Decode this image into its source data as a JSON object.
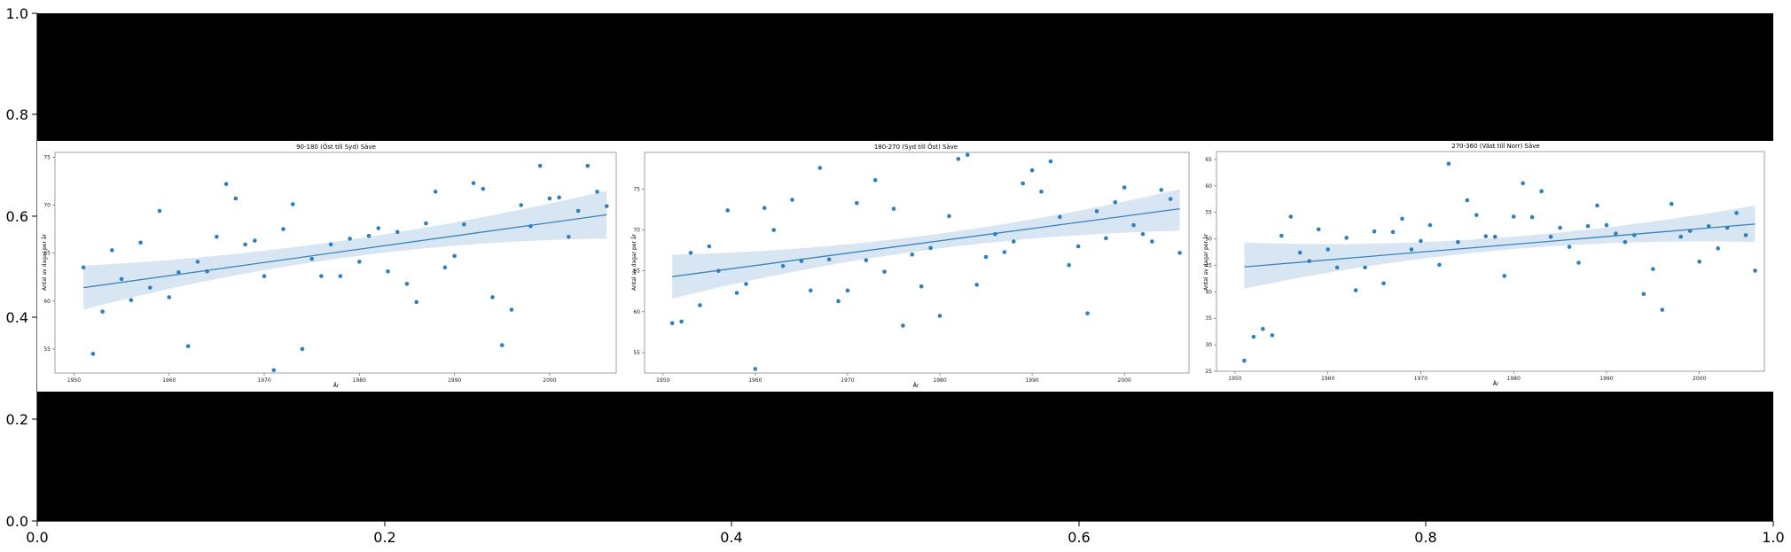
{
  "outer_axes": {
    "x_ticks": [
      "0.0",
      "0.2",
      "0.4",
      "0.6",
      "0.8",
      "1.0"
    ],
    "y_ticks": [
      "0.0",
      "0.2",
      "0.4",
      "0.6",
      "0.8",
      "1.0"
    ]
  },
  "colors": {
    "background": "#000000",
    "points": "#2f7fc0",
    "trend_line": "#3a82ba",
    "confidence_band": "#a9c8e6"
  },
  "chart_data": [
    {
      "type": "scatter",
      "title": "90-180 (Öst till Syd) Säve",
      "xlabel": "År",
      "ylabel": "Antal av dagar per år",
      "xlim": [
        1948,
        2007
      ],
      "ylim": [
        52.5,
        75.5
      ],
      "x_ticks": [
        1950,
        1960,
        1970,
        1980,
        1990,
        2000
      ],
      "y_ticks": [
        55,
        60,
        65,
        70,
        75
      ],
      "x": [
        1951,
        1952,
        1953,
        1954,
        1955,
        1956,
        1957,
        1958,
        1959,
        1960,
        1961,
        1962,
        1963,
        1964,
        1965,
        1966,
        1967,
        1968,
        1969,
        1970,
        1971,
        1972,
        1973,
        1974,
        1975,
        1976,
        1977,
        1978,
        1979,
        1980,
        1981,
        1982,
        1983,
        1984,
        1985,
        1986,
        1987,
        1988,
        1989,
        1990,
        1991,
        1992,
        1993,
        1994,
        1995,
        1996,
        1997,
        1998,
        1999,
        2000,
        2001,
        2002,
        2003,
        2004,
        2005,
        2006
      ],
      "y": [
        63.5,
        54.5,
        58.9,
        65.3,
        62.3,
        60.1,
        66.1,
        61.4,
        69.4,
        60.4,
        63.0,
        55.3,
        64.1,
        63.1,
        66.7,
        72.2,
        70.7,
        65.9,
        66.3,
        62.6,
        52.8,
        67.5,
        70.1,
        55.0,
        64.4,
        62.6,
        65.9,
        62.6,
        66.5,
        64.1,
        66.8,
        67.6,
        63.1,
        67.2,
        61.8,
        59.9,
        68.1,
        71.4,
        63.5,
        64.7,
        68.0,
        72.3,
        71.7,
        60.4,
        55.4,
        59.1,
        70.0,
        67.8,
        74.1,
        70.7,
        70.8,
        66.7,
        69.4,
        74.1,
        71.4,
        69.9
      ],
      "fit": {
        "x0": 1951,
        "y0": 61.4,
        "x1": 2006,
        "y1": 69.0
      },
      "band": {
        "x": [
          1951,
          1978,
          2006
        ],
        "lower": [
          59.1,
          64.5,
          66.5
        ],
        "upper": [
          63.7,
          66.3,
          71.5
        ]
      }
    },
    {
      "type": "scatter",
      "title": "180-270 (Syd till Öst) Säve",
      "xlabel": "År",
      "ylabel": "Antal av dagar per år",
      "xlim": [
        1948,
        2007
      ],
      "ylim": [
        52.5,
        79.5
      ],
      "x_ticks": [
        1950,
        1960,
        1970,
        1980,
        1990,
        2000
      ],
      "y_ticks": [
        55,
        60,
        65,
        70,
        75
      ],
      "x": [
        1951,
        1952,
        1953,
        1954,
        1955,
        1956,
        1957,
        1958,
        1959,
        1960,
        1961,
        1962,
        1963,
        1964,
        1965,
        1966,
        1967,
        1968,
        1969,
        1970,
        1971,
        1972,
        1973,
        1974,
        1975,
        1976,
        1977,
        1978,
        1979,
        1980,
        1981,
        1982,
        1983,
        1984,
        1985,
        1986,
        1987,
        1988,
        1989,
        1990,
        1991,
        1992,
        1993,
        1994,
        1995,
        1996,
        1997,
        1998,
        1999,
        2000,
        2001,
        2002,
        2003,
        2004,
        2005,
        2006
      ],
      "y": [
        58.6,
        58.8,
        67.2,
        60.8,
        68.0,
        65.0,
        72.4,
        62.3,
        63.4,
        53.0,
        72.7,
        70.0,
        65.6,
        73.7,
        66.2,
        62.6,
        77.6,
        66.4,
        61.3,
        62.6,
        73.3,
        66.3,
        76.1,
        64.9,
        72.6,
        58.3,
        67.0,
        63.1,
        67.8,
        59.5,
        71.7,
        78.7,
        79.2,
        63.3,
        66.7,
        69.5,
        67.3,
        68.6,
        75.7,
        77.3,
        74.7,
        78.4,
        71.6,
        65.7,
        68.0,
        59.8,
        72.3,
        69.0,
        73.4,
        75.2,
        70.6,
        69.5,
        68.6,
        74.9,
        73.8,
        67.2
      ],
      "fit": {
        "x0": 1951,
        "y0": 64.3,
        "x1": 2006,
        "y1": 72.6
      },
      "band": {
        "x": [
          1951,
          1978,
          2006
        ],
        "lower": [
          61.6,
          67.5,
          69.9
        ],
        "upper": [
          67.0,
          69.3,
          75.0
        ]
      }
    },
    {
      "type": "scatter",
      "title": "270-360 (Väst till Norr) Säve",
      "xlabel": "År",
      "ylabel": "Antal av dagar per år",
      "xlim": [
        1948,
        2007
      ],
      "ylim": [
        25,
        66.5
      ],
      "x_ticks": [
        1950,
        1960,
        1970,
        1980,
        1990,
        2000
      ],
      "y_ticks": [
        25,
        30,
        35,
        40,
        45,
        50,
        55,
        60,
        65
      ],
      "x": [
        1951,
        1952,
        1953,
        1954,
        1955,
        1956,
        1957,
        1958,
        1959,
        1960,
        1961,
        1962,
        1963,
        1964,
        1965,
        1966,
        1967,
        1968,
        1969,
        1970,
        1971,
        1972,
        1973,
        1974,
        1975,
        1976,
        1977,
        1978,
        1979,
        1980,
        1981,
        1982,
        1983,
        1984,
        1985,
        1986,
        1987,
        1988,
        1989,
        1990,
        1991,
        1992,
        1993,
        1994,
        1995,
        1996,
        1997,
        1998,
        1999,
        2000,
        2001,
        2002,
        2003,
        2004,
        2005,
        2006
      ],
      "y": [
        27.0,
        31.5,
        33.0,
        31.8,
        50.6,
        54.2,
        47.4,
        45.8,
        51.8,
        48.0,
        44.6,
        50.2,
        40.3,
        44.6,
        51.4,
        41.6,
        51.3,
        53.8,
        48.0,
        49.6,
        52.6,
        45.1,
        64.2,
        49.4,
        57.3,
        54.5,
        50.5,
        50.4,
        43.0,
        54.2,
        60.5,
        54.1,
        59.0,
        50.4,
        52.1,
        48.5,
        45.5,
        52.4,
        56.3,
        52.6,
        51.0,
        49.4,
        50.7,
        39.6,
        44.3,
        36.6,
        56.6,
        50.4,
        51.5,
        45.7,
        52.4,
        48.2,
        52.1,
        54.9,
        50.7,
        44.0
      ],
      "fit": {
        "x0": 1951,
        "y0": 44.7,
        "x1": 2006,
        "y1": 52.8
      },
      "band": {
        "x": [
          1951,
          1978,
          2006
        ],
        "lower": [
          40.6,
          47.8,
          49.4
        ],
        "upper": [
          49.3,
          50.2,
          56.3
        ]
      }
    }
  ]
}
